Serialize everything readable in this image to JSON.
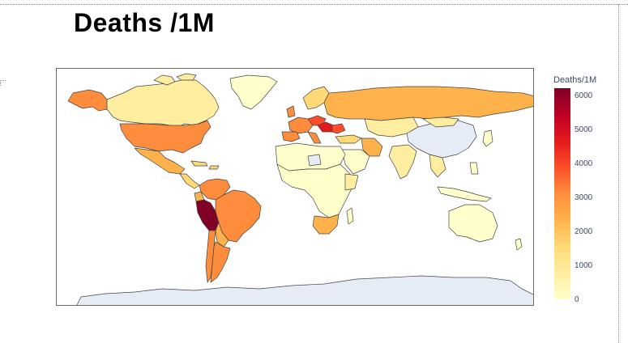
{
  "title": "Deaths /1M",
  "map": {
    "type": "choropleth",
    "projection": "equirectangular",
    "no_data_color": "#e5ecf6",
    "border_color": "#444444"
  },
  "colorbar": {
    "title": "Deaths/1M",
    "min": 0,
    "max": 6200,
    "ticks": [
      "0",
      "1000",
      "2000",
      "3000",
      "4000",
      "5000",
      "6000"
    ],
    "tick_values": [
      0,
      1000,
      2000,
      3000,
      4000,
      5000,
      6000
    ],
    "colorscale": [
      "#ffffcc",
      "#ffeda0",
      "#fed976",
      "#feb24c",
      "#fd8d3c",
      "#fc4e2a",
      "#e31a1c",
      "#bd0026",
      "#800026"
    ]
  },
  "chart_data": {
    "type": "map",
    "title": "Deaths /1M",
    "colorbar_title": "Deaths/1M",
    "range": [
      0,
      6200
    ],
    "regions": [
      {
        "name": "Peru",
        "value": 6100
      },
      {
        "name": "Hungary",
        "value": 4800
      },
      {
        "name": "Bulgaria",
        "value": 4400
      },
      {
        "name": "Czechia",
        "value": 3700
      },
      {
        "name": "Brazil",
        "value": 3200
      },
      {
        "name": "Colombia",
        "value": 2800
      },
      {
        "name": "Argentina",
        "value": 2600
      },
      {
        "name": "Mexico",
        "value": 2500
      },
      {
        "name": "United States",
        "value": 2400
      },
      {
        "name": "Russia",
        "value": 2200
      },
      {
        "name": "Chile",
        "value": 2000
      },
      {
        "name": "Alaska",
        "value": 2400
      },
      {
        "name": "South Africa",
        "value": 1700
      },
      {
        "name": "Iran",
        "value": 1500
      },
      {
        "name": "Canada",
        "value": 800
      },
      {
        "name": "Greenland",
        "value": 100
      },
      {
        "name": "India",
        "value": 350
      },
      {
        "name": "Australia",
        "value": 100
      },
      {
        "name": "China",
        "value": null
      },
      {
        "name": "Antarctica",
        "value": null
      }
    ]
  }
}
